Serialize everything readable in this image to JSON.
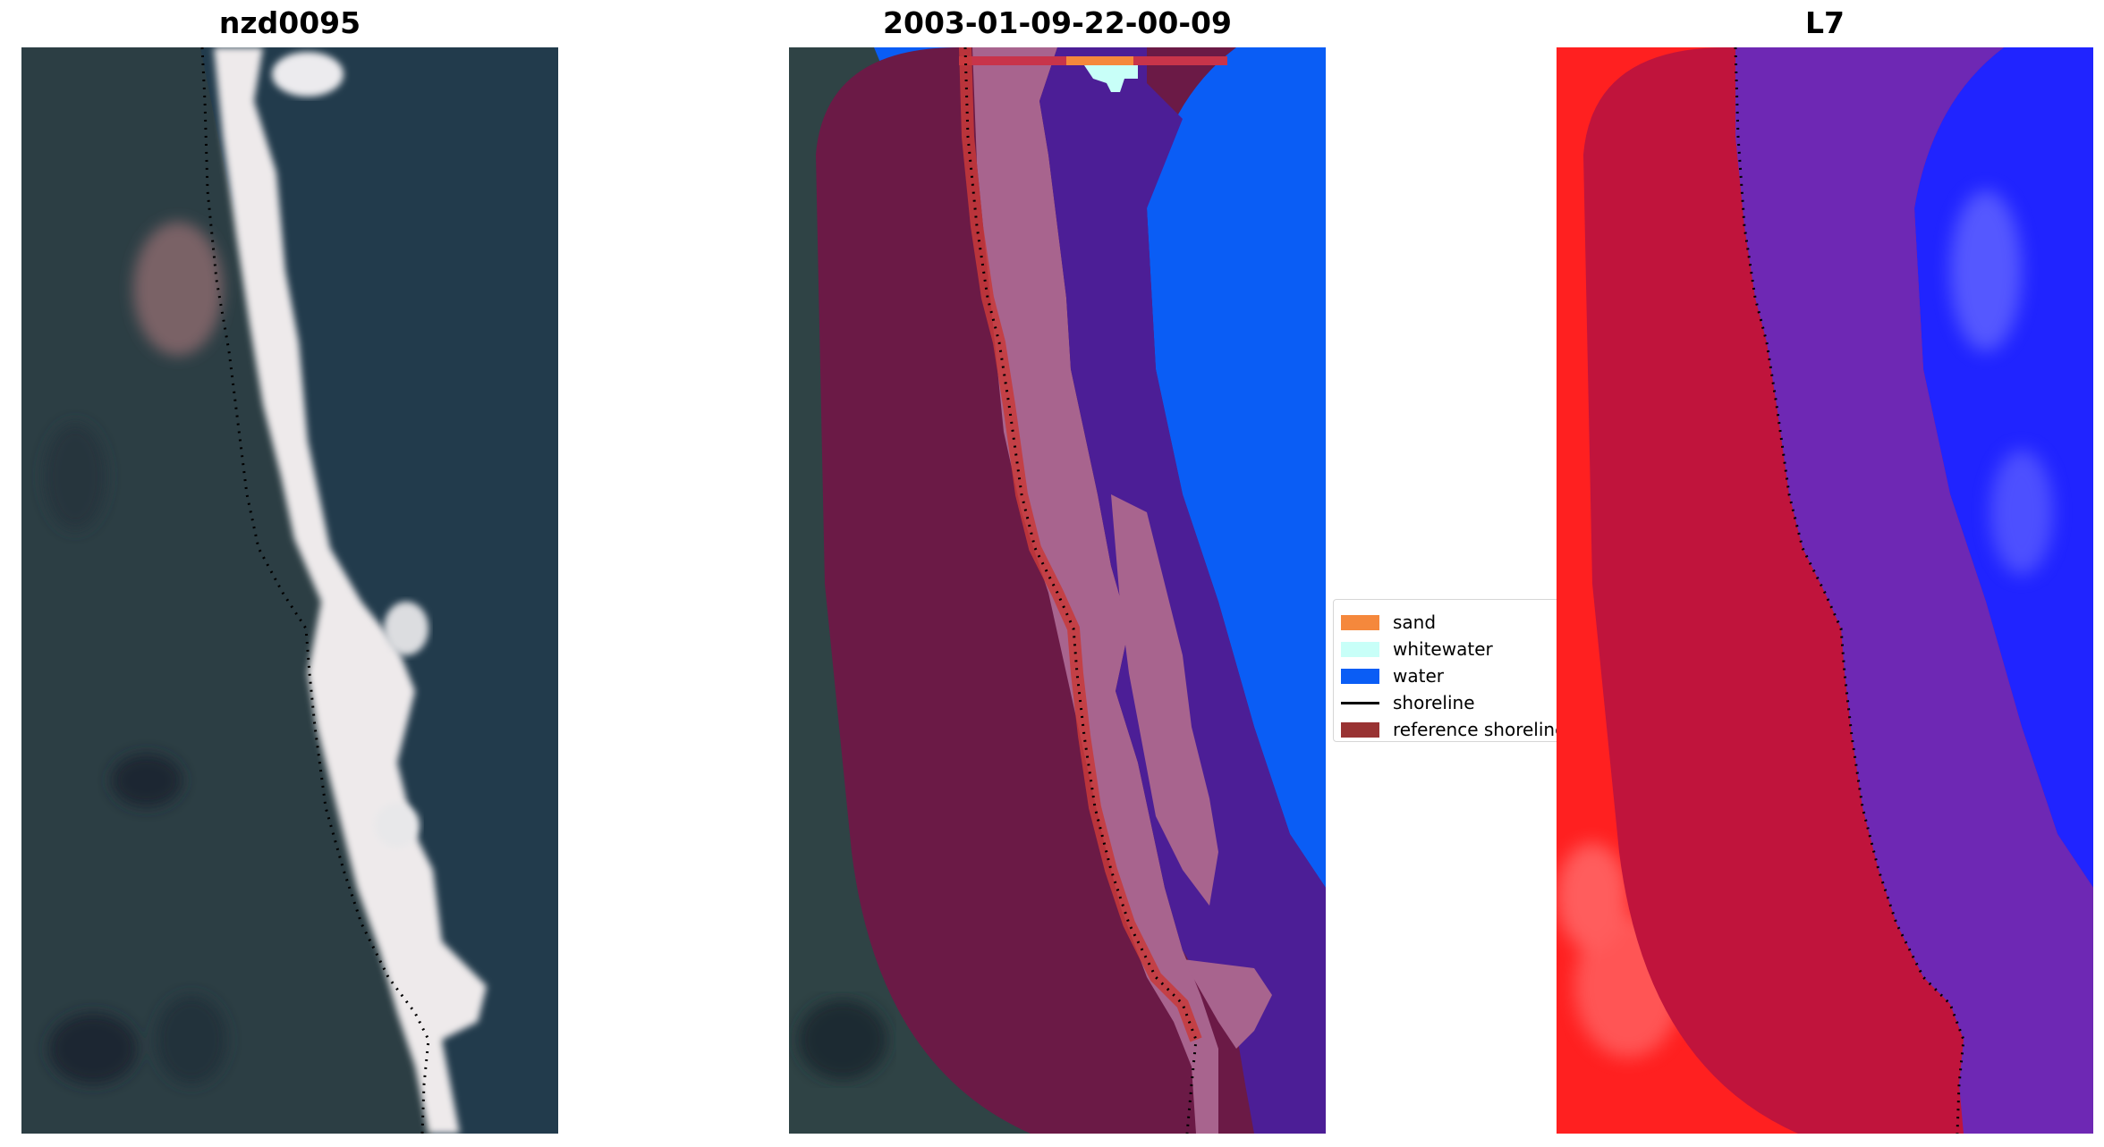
{
  "panels": [
    {
      "title": "nzd0095"
    },
    {
      "title": "2003-01-09-22-00-09"
    },
    {
      "title": "L7"
    }
  ],
  "legend": {
    "items": [
      {
        "label": "sand",
        "color": "#f5883c"
      },
      {
        "label": "whitewater",
        "color": "#c8fff8"
      },
      {
        "label": "water",
        "color": "#0a5df5"
      },
      {
        "label": "shoreline",
        "color": "#000000"
      },
      {
        "label": "reference shoreline",
        "color": "#993333"
      }
    ]
  },
  "colors": {
    "land": "#2c3e44",
    "ocean": "#233c4d",
    "beach": "#f0eeee",
    "buffer": "#6b1a46",
    "sand_class": "#a8648e",
    "water_class": "#4c1e96",
    "index_land": "#ff2020",
    "index_water": "#2024ff",
    "index_buffer_land": "#c0143c",
    "index_buffer_water": "#6e28b4"
  }
}
